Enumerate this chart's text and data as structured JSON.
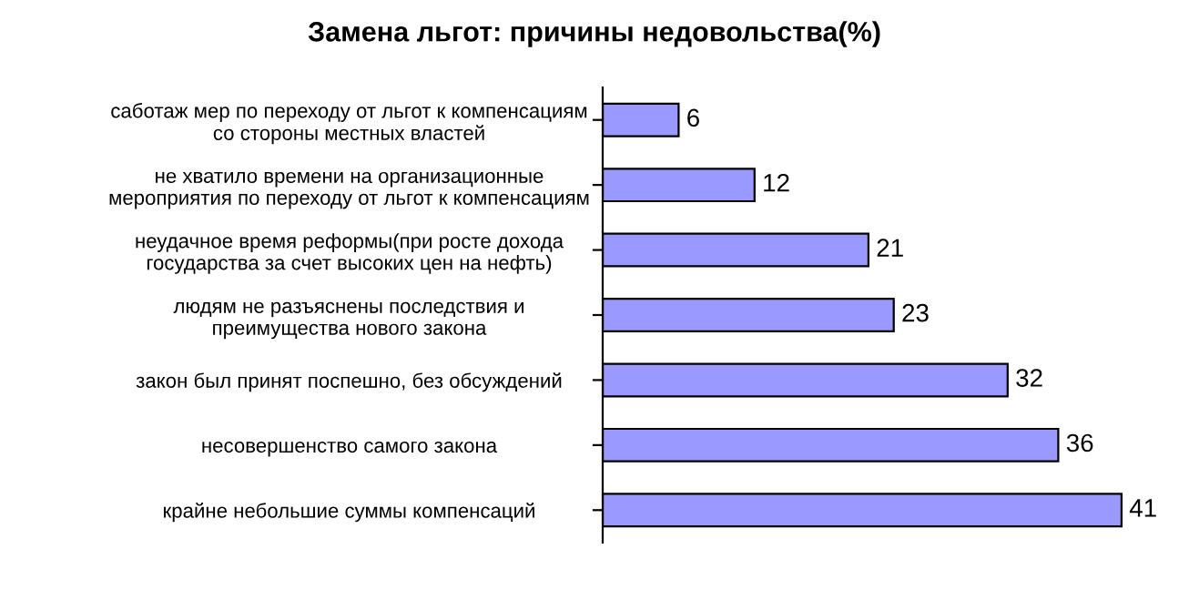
{
  "chart_data": {
    "type": "bar",
    "orientation": "horizontal",
    "title": "Замена льгот: причины недовольства(%)",
    "categories": [
      "саботаж мер по переходу от льгот к компенсациям\nсо стороны местных властей",
      "не хватило времени на организационные\nмероприятия по переходу от льгот к компенсациям",
      "неудачное время реформы(при росте дохода\nгосударства за счет высоких цен на нефть)",
      "людям не разъяснены последствия и\nпреимущества нового закона",
      "закон был принят поспешно, без обсуждений",
      "несовершенство самого закона",
      "крайне небольшие суммы компенсаций"
    ],
    "values": [
      6,
      12,
      21,
      23,
      32,
      36,
      41
    ],
    "color": "#9999ff",
    "data_labels": true,
    "grid": false,
    "legend": false
  }
}
